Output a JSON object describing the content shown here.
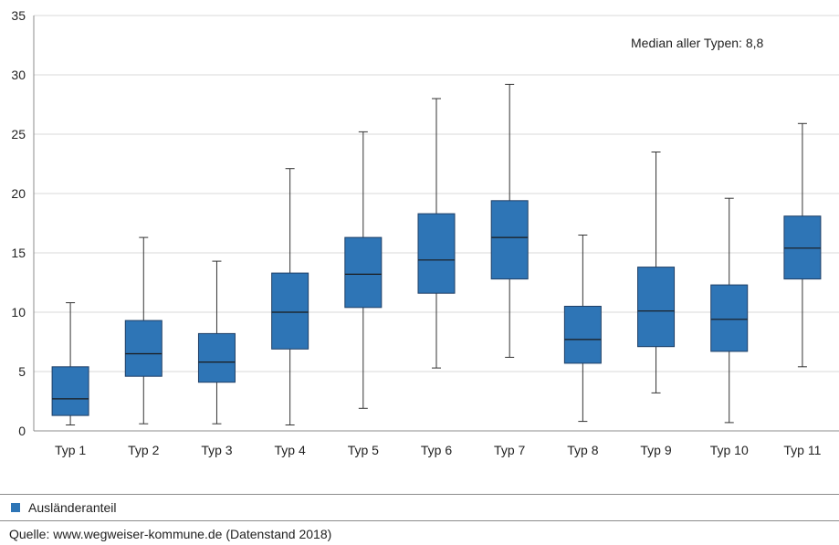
{
  "chart_data": {
    "type": "boxplot",
    "categories": [
      "Typ 1",
      "Typ 2",
      "Typ 3",
      "Typ 4",
      "Typ 5",
      "Typ 6",
      "Typ 7",
      "Typ 8",
      "Typ 9",
      "Typ 10",
      "Typ 11"
    ],
    "series": [
      {
        "name": "Ausländeranteil",
        "color": "#2e75b6",
        "boxes": [
          {
            "min": 0.5,
            "q1": 1.3,
            "median": 2.7,
            "q3": 5.4,
            "max": 10.8
          },
          {
            "min": 0.6,
            "q1": 4.6,
            "median": 6.5,
            "q3": 9.3,
            "max": 16.3
          },
          {
            "min": 0.6,
            "q1": 4.1,
            "median": 5.8,
            "q3": 8.2,
            "max": 14.3
          },
          {
            "min": 0.5,
            "q1": 6.9,
            "median": 10.0,
            "q3": 13.3,
            "max": 22.1
          },
          {
            "min": 1.9,
            "q1": 10.4,
            "median": 13.2,
            "q3": 16.3,
            "max": 25.2
          },
          {
            "min": 5.3,
            "q1": 11.6,
            "median": 14.4,
            "q3": 18.3,
            "max": 28.0
          },
          {
            "min": 6.2,
            "q1": 12.8,
            "median": 16.3,
            "q3": 19.4,
            "max": 29.2
          },
          {
            "min": 0.8,
            "q1": 5.7,
            "median": 7.7,
            "q3": 10.5,
            "max": 16.5
          },
          {
            "min": 3.2,
            "q1": 7.1,
            "median": 10.1,
            "q3": 13.8,
            "max": 23.5
          },
          {
            "min": 0.7,
            "q1": 6.7,
            "median": 9.4,
            "q3": 12.3,
            "max": 19.6
          },
          {
            "min": 5.4,
            "q1": 12.8,
            "median": 15.4,
            "q3": 18.1,
            "max": 25.9
          }
        ]
      }
    ],
    "yticks": [
      "0",
      "5",
      "10",
      "15",
      "20",
      "25",
      "30",
      "35"
    ],
    "ylim": [
      0,
      35
    ],
    "grid": true,
    "annotation": "Median aller Typen: 8,8",
    "legend_position": "bottom-left"
  },
  "legend": {
    "label": "Ausländeranteil",
    "color": "#2e75b6"
  },
  "footer": {
    "source": "Quelle: www.wegweiser-kommune.de (Datenstand 2018)"
  },
  "colors": {
    "box_fill": "#2e75b6",
    "box_stroke": "#1f3f66",
    "grid": "#d9d9d9",
    "axis": "#8c8c8c"
  }
}
